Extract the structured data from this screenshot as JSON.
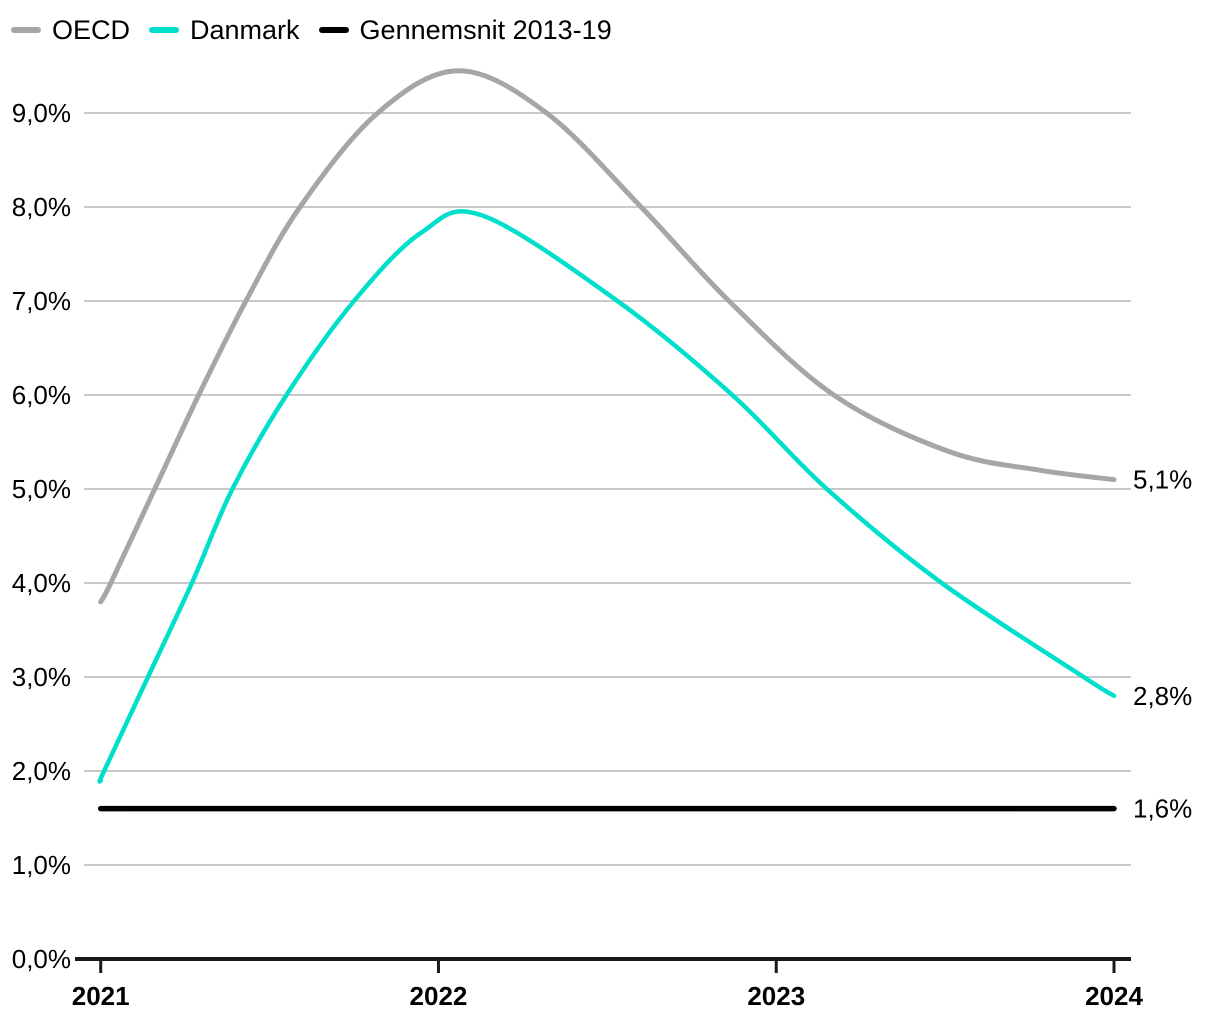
{
  "chart_data": {
    "type": "line",
    "title": "",
    "unit": "percent",
    "decimal_style": "comma",
    "xlim": [
      2021,
      2024
    ],
    "ylim": [
      0,
      9.9
    ],
    "grid": true,
    "legend_position": "top-left",
    "x_ticks": [
      "2021",
      "2022",
      "2023",
      "2024"
    ],
    "y_ticks": [
      "0,0%",
      "1,0%",
      "2,0%",
      "3,0%",
      "4,0%",
      "5,0%",
      "6,0%",
      "7,0%",
      "8,0%",
      "9,0%"
    ],
    "colors": {
      "grid": "#c9c9c9",
      "axis": "#1a1a1a",
      "text": "#000000"
    },
    "series": [
      {
        "name": "OECD",
        "color": "#a6a6a6",
        "end_label": "5,1%",
        "end_value": 5.1,
        "points": [
          [
            2021.0,
            3.8
          ],
          [
            2021.03,
            4.0
          ],
          [
            2021.16,
            5.0
          ],
          [
            2021.29,
            6.0
          ],
          [
            2021.43,
            7.0
          ],
          [
            2021.59,
            8.0
          ],
          [
            2021.82,
            9.0
          ],
          [
            2022.06,
            9.45
          ],
          [
            2022.32,
            9.0
          ],
          [
            2022.6,
            8.0
          ],
          [
            2022.86,
            7.0
          ],
          [
            2023.17,
            6.0
          ],
          [
            2023.51,
            5.4
          ],
          [
            2023.78,
            5.2
          ],
          [
            2024.0,
            5.1
          ]
        ]
      },
      {
        "name": "Danmark",
        "color": "#00dfcb",
        "end_label": "2,8%",
        "end_value": 2.8,
        "points": [
          [
            2021.0,
            1.9
          ],
          [
            2021.01,
            2.0
          ],
          [
            2021.14,
            3.0
          ],
          [
            2021.27,
            4.0
          ],
          [
            2021.39,
            5.0
          ],
          [
            2021.55,
            6.0
          ],
          [
            2021.75,
            7.0
          ],
          [
            2021.95,
            7.73
          ],
          [
            2022.13,
            7.91
          ],
          [
            2022.53,
            7.0
          ],
          [
            2022.87,
            6.0
          ],
          [
            2023.15,
            5.0
          ],
          [
            2023.49,
            4.0
          ],
          [
            2023.91,
            3.0
          ],
          [
            2024.0,
            2.8
          ]
        ]
      },
      {
        "name": "Gennemsnit 2013-19",
        "color": "#000000",
        "end_label": "1,6%",
        "end_value": 1.6,
        "points": [
          [
            2021.0,
            1.6
          ],
          [
            2024.0,
            1.6
          ]
        ]
      }
    ]
  }
}
